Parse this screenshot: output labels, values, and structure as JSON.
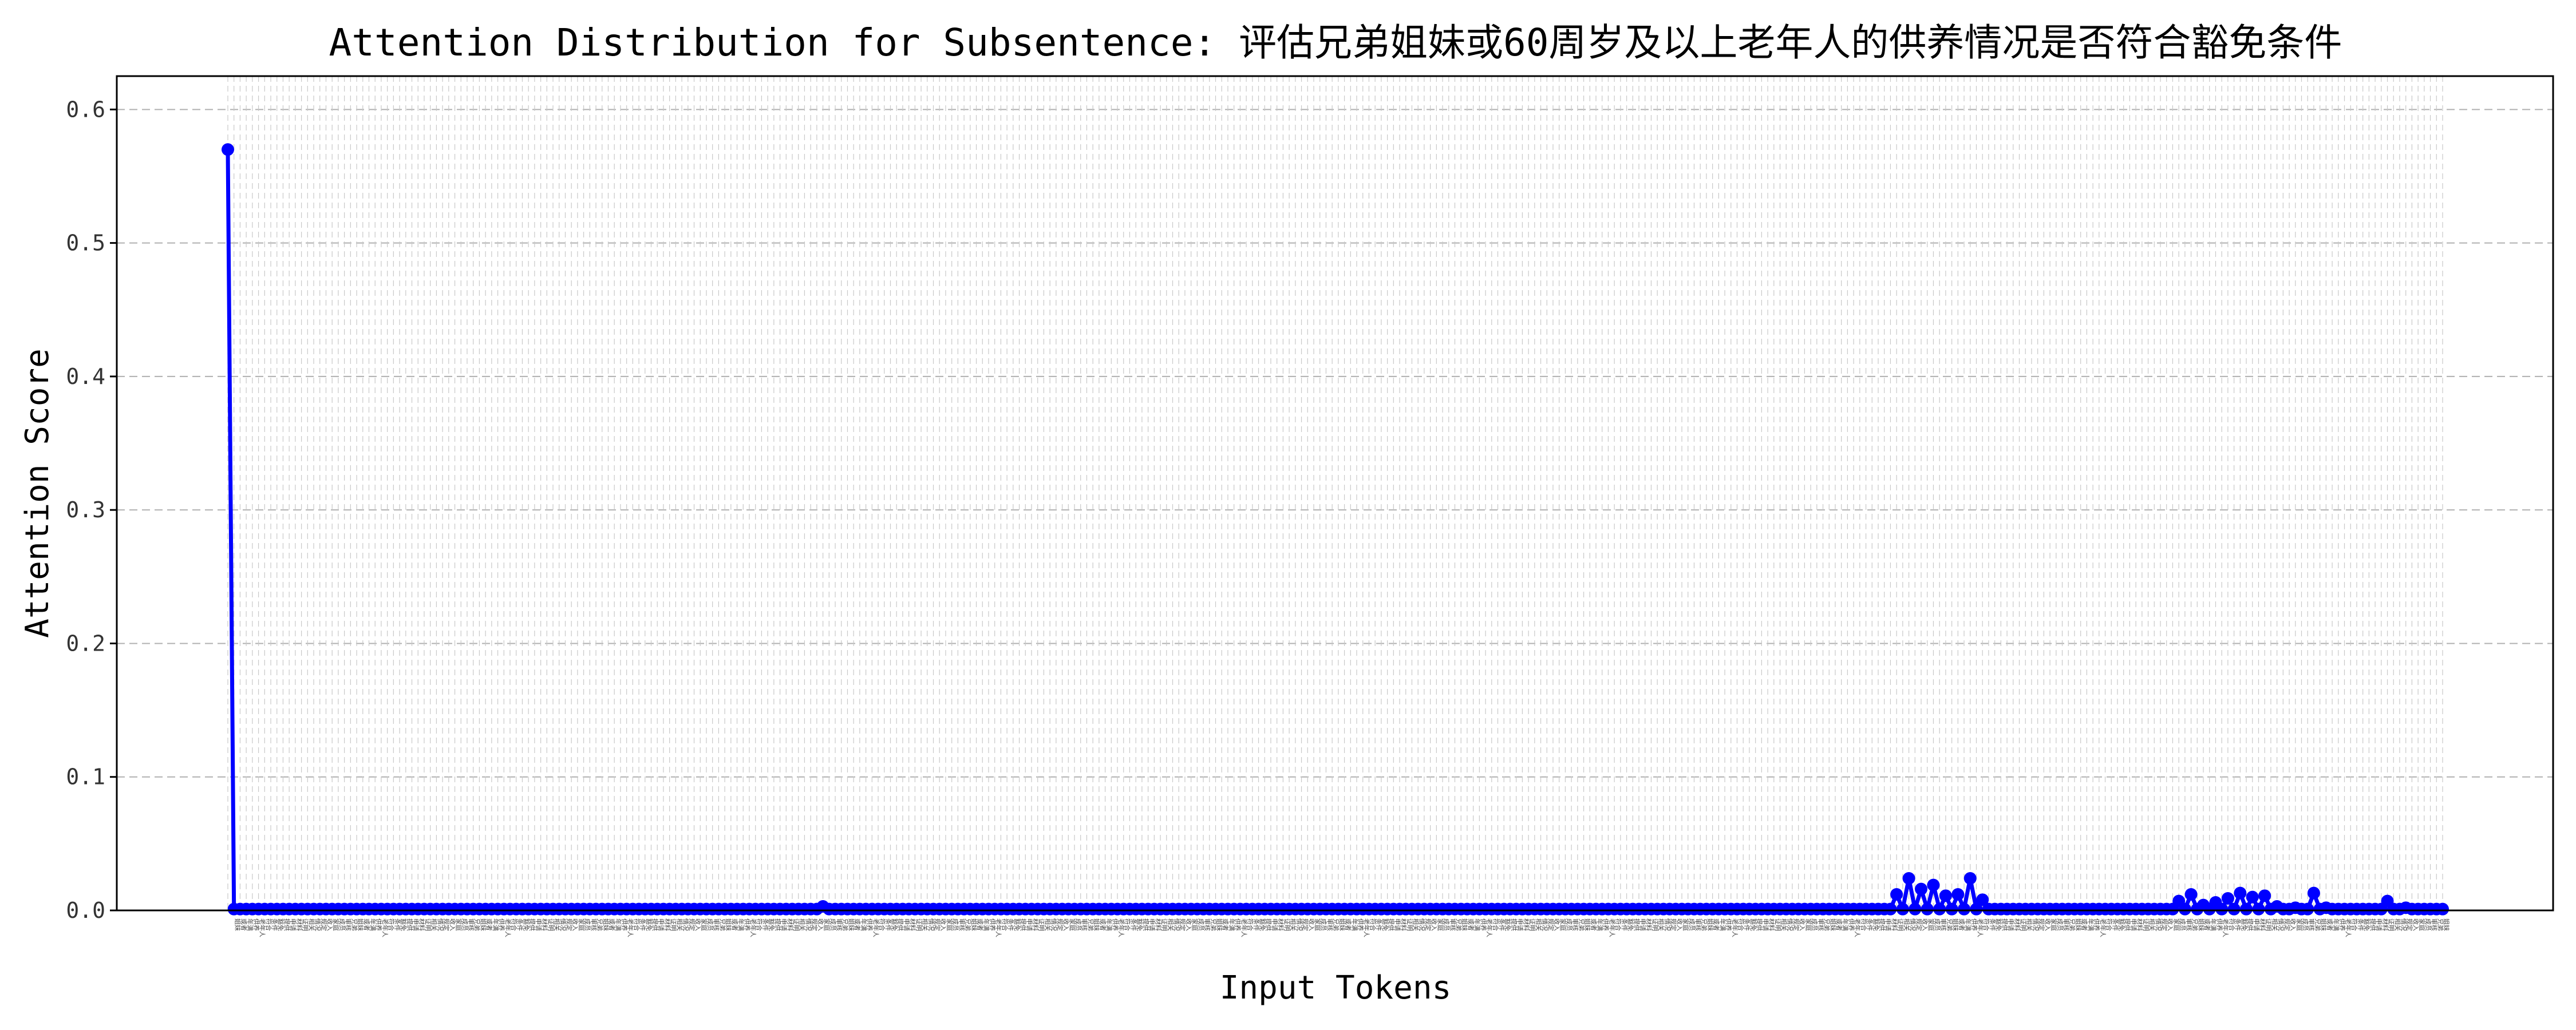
{
  "chart_data": {
    "type": "line",
    "title": "Attention Distribution for Subsentence: 评估兄弟姐妹或60周岁及以上老年人的供养情况是否符合豁免条件",
    "xlabel": "Input Tokens",
    "ylabel": "Attention Score",
    "ylim": [
      0,
      0.625
    ],
    "yticks": [
      0.0,
      0.1,
      0.2,
      0.3,
      0.4,
      0.5,
      0.6
    ],
    "ytick_labels": [
      "0.0",
      "0.1",
      "0.2",
      "0.3",
      "0.4",
      "0.5",
      "0.6"
    ],
    "grid": true,
    "legend": "none",
    "line_color": "#0000ff",
    "token_count": 362,
    "series": [
      {
        "peaks": [
          {
            "index": 0,
            "value": 0.57
          },
          {
            "index": 97,
            "value": 0.003
          },
          {
            "index": 272,
            "value": 0.012
          },
          {
            "index": 274,
            "value": 0.024
          },
          {
            "index": 276,
            "value": 0.016
          },
          {
            "index": 278,
            "value": 0.019
          },
          {
            "index": 280,
            "value": 0.011
          },
          {
            "index": 282,
            "value": 0.012
          },
          {
            "index": 284,
            "value": 0.024
          },
          {
            "index": 286,
            "value": 0.008
          },
          {
            "index": 318,
            "value": 0.007
          },
          {
            "index": 320,
            "value": 0.012
          },
          {
            "index": 322,
            "value": 0.004
          },
          {
            "index": 324,
            "value": 0.006
          },
          {
            "index": 326,
            "value": 0.009
          },
          {
            "index": 328,
            "value": 0.013
          },
          {
            "index": 330,
            "value": 0.01
          },
          {
            "index": 332,
            "value": 0.011
          },
          {
            "index": 334,
            "value": 0.003
          },
          {
            "index": 337,
            "value": 0.002
          },
          {
            "index": 340,
            "value": 0.013
          },
          {
            "index": 342,
            "value": 0.002
          },
          {
            "index": 352,
            "value": 0.007
          },
          {
            "index": 355,
            "value": 0.002
          }
        ],
        "baseline": 0.001
      }
    ],
    "tick_labels": [
      "兄弟",
      "姐妹",
      "或者",
      "年满",
      "供养",
      "老年人",
      "符合",
      "条件",
      "豁免",
      "提供",
      "申请",
      "材料",
      "证明",
      "相关",
      "情况",
      "规定",
      "收入",
      "家庭",
      "成员",
      "审核"
    ]
  }
}
